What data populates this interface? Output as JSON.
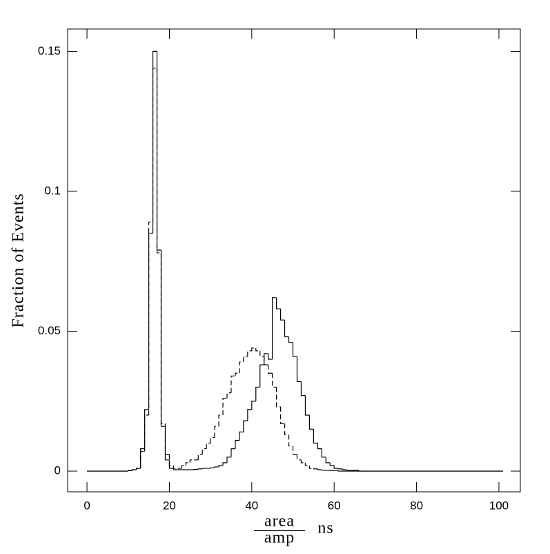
{
  "chart_data": {
    "type": "step-histogram",
    "ylabel": "Fraction of Events",
    "xlabel": {
      "numerator": "area",
      "denominator": "amp",
      "unit": "ns"
    },
    "bins": [
      0,
      1,
      2,
      3,
      4,
      5,
      6,
      7,
      8,
      9,
      10,
      11,
      12,
      13,
      14,
      15,
      16,
      17,
      18,
      19,
      20,
      21,
      22,
      23,
      24,
      25,
      26,
      27,
      28,
      29,
      30,
      31,
      32,
      33,
      34,
      35,
      36,
      37,
      38,
      39,
      40,
      41,
      42,
      43,
      44,
      45,
      46,
      47,
      48,
      49,
      50,
      51,
      52,
      53,
      54,
      55,
      56,
      57,
      58,
      59,
      60,
      61,
      62,
      63,
      64,
      65,
      66,
      67,
      68,
      69,
      70,
      71,
      72,
      73,
      74,
      75,
      76,
      77,
      78,
      79,
      80,
      81,
      82,
      83,
      84,
      85,
      86,
      87,
      88,
      89,
      90,
      91,
      92,
      93,
      94,
      95,
      96,
      97,
      98,
      99,
      100,
      101
    ],
    "series": [
      {
        "color": "#000000",
        "style": "solid",
        "values": [
          0,
          0,
          0,
          0,
          0,
          0,
          0,
          0,
          0,
          0,
          0.0003,
          0.0005,
          0.001,
          0.008,
          0.022,
          0.085,
          0.15,
          0.079,
          0.016,
          0.004,
          0.001,
          0.0005,
          0.0005,
          0.0005,
          0.0005,
          0.0005,
          0.0006,
          0.0008,
          0.001,
          0.001,
          0.0012,
          0.0015,
          0.002,
          0.003,
          0.005,
          0.008,
          0.011,
          0.014,
          0.018,
          0.022,
          0.025,
          0.03,
          0.038,
          0.042,
          0.04,
          0.062,
          0.058,
          0.054,
          0.048,
          0.046,
          0.041,
          0.032,
          0.027,
          0.02,
          0.015,
          0.01,
          0.008,
          0.005,
          0.003,
          0.002,
          0.001,
          0.0008,
          0.0005,
          0.0003,
          0.0003,
          0.0003,
          0,
          0,
          0,
          0,
          0,
          0,
          0,
          0,
          0,
          0,
          0,
          0,
          0,
          0,
          0,
          0,
          0,
          0,
          0,
          0,
          0,
          0,
          0,
          0,
          0,
          0,
          0,
          0,
          0,
          0,
          0,
          0,
          0,
          0,
          0
        ]
      },
      {
        "color": "#000000",
        "style": "dashed",
        "values": [
          0,
          0,
          0,
          0,
          0,
          0,
          0,
          0,
          0,
          0,
          0.0002,
          0.0005,
          0.001,
          0.007,
          0.02,
          0.089,
          0.144,
          0.078,
          0.017,
          0.006,
          0.002,
          0.001,
          0.001,
          0.002,
          0.003,
          0.004,
          0.004,
          0.006,
          0.008,
          0.01,
          0.012,
          0.016,
          0.02,
          0.026,
          0.028,
          0.034,
          0.035,
          0.039,
          0.041,
          0.043,
          0.044,
          0.043,
          0.041,
          0.038,
          0.035,
          0.03,
          0.023,
          0.017,
          0.013,
          0.009,
          0.006,
          0.004,
          0.003,
          0.002,
          0.001,
          0.0008,
          0.0005,
          0.0003,
          0.0003,
          0.0002,
          0.0002,
          0,
          0,
          0,
          0,
          0,
          0,
          0,
          0,
          0,
          0,
          0,
          0,
          0,
          0,
          0,
          0,
          0,
          0,
          0,
          0,
          0,
          0,
          0,
          0,
          0,
          0,
          0,
          0,
          0,
          0,
          0,
          0,
          0,
          0,
          0,
          0,
          0,
          0,
          0,
          0
        ]
      }
    ],
    "xlim": [
      -4.7,
      105.2
    ],
    "ylim": [
      -0.0074,
      0.158
    ],
    "xticks": [
      0,
      20,
      40,
      60,
      80,
      100
    ],
    "yticks": [
      0,
      0.05,
      0.1,
      0.15
    ]
  }
}
